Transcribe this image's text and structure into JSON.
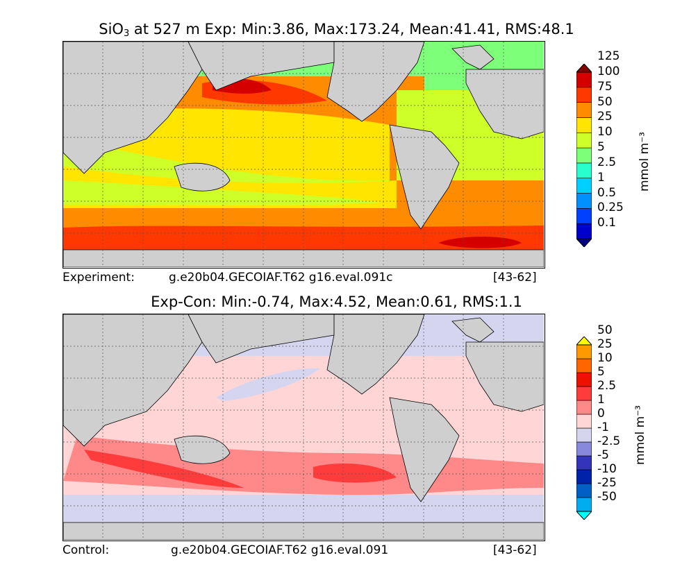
{
  "top": {
    "title_prefix": "SiO",
    "title_sub": "3",
    "title_rest": " at 527 m Exp: Min:3.86, Max:173.24, Mean:41.41, RMS:48.1",
    "caption_role": "Experiment:",
    "caption_case": "g.e20b04.GECOIAF.T62 g16.eval.091c",
    "caption_years": "[43-62]",
    "unit_label": "mmol m⁻³",
    "colorbar_levels": [
      "0.1",
      "0.25",
      "0.5",
      "1",
      "2.5",
      "5",
      "10",
      "25",
      "50",
      "75",
      "100",
      "125"
    ],
    "colorbar_colors": [
      "#00007f",
      "#0000cd",
      "#0040ff",
      "#0090ff",
      "#00d0ff",
      "#29ffce",
      "#7dff7a",
      "#ceff29",
      "#ffe500",
      "#ff8c00",
      "#ff3800",
      "#d40000",
      "#7f0000"
    ]
  },
  "bottom": {
    "title": "Exp-Con: Min:-0.74, Max:4.52, Mean:0.61, RMS:1.1",
    "caption_role": "Control:",
    "caption_case": "g.e20b04.GECOIAF.T62 g16.eval.091",
    "caption_years": "[43-62]",
    "unit_label": "mmol m⁻³",
    "colorbar_levels": [
      "-50",
      "-25",
      "-10",
      "-5",
      "-2.5",
      "-1",
      "0",
      "1",
      "2.5",
      "5",
      "10",
      "25",
      "50"
    ],
    "colorbar_colors": [
      "#00ffff",
      "#00aeef",
      "#0060c8",
      "#0022aa",
      "#3333bb",
      "#8888dd",
      "#d5d5f0",
      "#ffd5d5",
      "#ff8888",
      "#ff3c3c",
      "#ee1100",
      "#ff6600",
      "#ff9900",
      "#ffff00"
    ]
  },
  "chart_data": [
    {
      "type": "heatmap",
      "title": "SiO3 at 527 m Exp: Min:3.86, Max:173.24, Mean:41.41, RMS:48.1",
      "variable": "SiO3",
      "depth": "527 m",
      "stats": {
        "min": 3.86,
        "max": 173.24,
        "mean": 41.41,
        "rms": 48.1
      },
      "units": "mmol m^-3",
      "contour_levels": [
        0.1,
        0.25,
        0.5,
        1,
        2.5,
        5,
        10,
        25,
        50,
        75,
        100,
        125
      ],
      "case": "g.e20b04.GECOIAF.T62 g16.eval.091c",
      "years": "[43-62]"
    },
    {
      "type": "heatmap",
      "title": "Exp-Con: Min:-0.74, Max:4.52, Mean:0.61, RMS:1.1",
      "stats": {
        "min": -0.74,
        "max": 4.52,
        "mean": 0.61,
        "rms": 1.1
      },
      "units": "mmol m^-3",
      "contour_levels": [
        -50,
        -25,
        -10,
        -5,
        -2.5,
        -1,
        0,
        1,
        2.5,
        5,
        10,
        25,
        50
      ],
      "case": "g.e20b04.GECOIAF.T62 g16.eval.091",
      "years": "[43-62]"
    }
  ]
}
